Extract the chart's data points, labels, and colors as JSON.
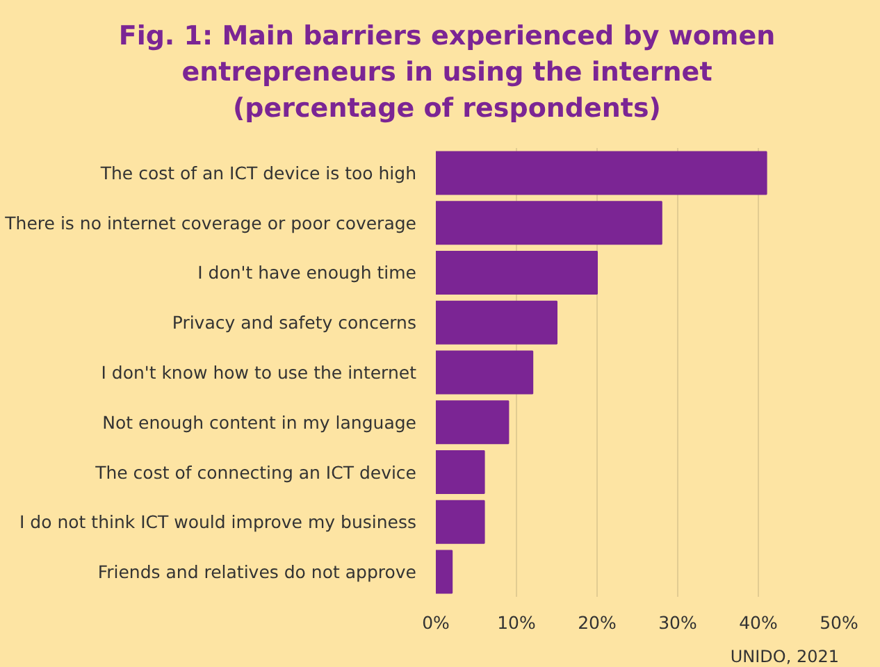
{
  "chart_data": {
    "type": "bar",
    "orientation": "horizontal",
    "title": "Fig. 1: Main barriers experienced by women\nentrepreneurs in using the internet\n(percentage of respondents)",
    "categories": [
      "The cost of an ICT device is too high",
      "There is no internet coverage or poor coverage",
      "I don't have enough time",
      "Privacy and safety concerns",
      "I don't know how to use the internet",
      "Not enough content in my language",
      "The cost of connecting an ICT device",
      "I do not think ICT would improve my business",
      "Friends and relatives do not approve"
    ],
    "values": [
      41,
      28,
      20,
      15,
      12,
      9,
      6,
      6,
      2
    ],
    "color": "#7b2594",
    "xlim": [
      0,
      50
    ],
    "xticks": [
      {
        "value": 0,
        "label": "0%"
      },
      {
        "value": 10,
        "label": "10%"
      },
      {
        "value": 20,
        "label": "20%"
      },
      {
        "value": 30,
        "label": "30%"
      },
      {
        "value": 40,
        "label": "40%"
      },
      {
        "value": 50,
        "label": "50%"
      }
    ],
    "grid": "x",
    "annotations": [
      "UNIDO, 2021"
    ]
  }
}
